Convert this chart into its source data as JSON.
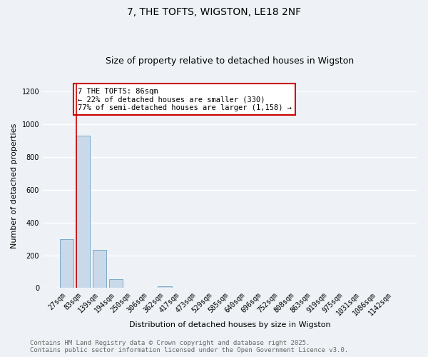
{
  "title": "7, THE TOFTS, WIGSTON, LE18 2NF",
  "subtitle": "Size of property relative to detached houses in Wigston",
  "xlabel": "Distribution of detached houses by size in Wigston",
  "ylabel": "Number of detached properties",
  "categories": [
    "27sqm",
    "83sqm",
    "139sqm",
    "194sqm",
    "250sqm",
    "306sqm",
    "362sqm",
    "417sqm",
    "473sqm",
    "529sqm",
    "585sqm",
    "640sqm",
    "696sqm",
    "752sqm",
    "808sqm",
    "863sqm",
    "919sqm",
    "975sqm",
    "1031sqm",
    "1086sqm",
    "1142sqm"
  ],
  "values": [
    300,
    930,
    235,
    55,
    0,
    0,
    10,
    0,
    0,
    0,
    0,
    0,
    0,
    0,
    0,
    0,
    0,
    0,
    0,
    0,
    0
  ],
  "bar_color": "#c9d9ea",
  "bar_edge_color": "#7aaac8",
  "marker_line_color": "#cc0000",
  "annotation_title": "7 THE TOFTS: 86sqm",
  "annotation_line1": "← 22% of detached houses are smaller (330)",
  "annotation_line2": "77% of semi-detached houses are larger (1,158) →",
  "annotation_box_color": "#ffffff",
  "annotation_box_edge": "#cc0000",
  "ylim": [
    0,
    1250
  ],
  "yticks": [
    0,
    200,
    400,
    600,
    800,
    1000,
    1200
  ],
  "background_color": "#eef2f6",
  "grid_color": "#ffffff",
  "footer_line1": "Contains HM Land Registry data © Crown copyright and database right 2025.",
  "footer_line2": "Contains public sector information licensed under the Open Government Licence v3.0.",
  "title_fontsize": 10,
  "subtitle_fontsize": 9,
  "axis_label_fontsize": 8,
  "tick_fontsize": 7,
  "annotation_fontsize": 7.5,
  "footer_fontsize": 6.5
}
